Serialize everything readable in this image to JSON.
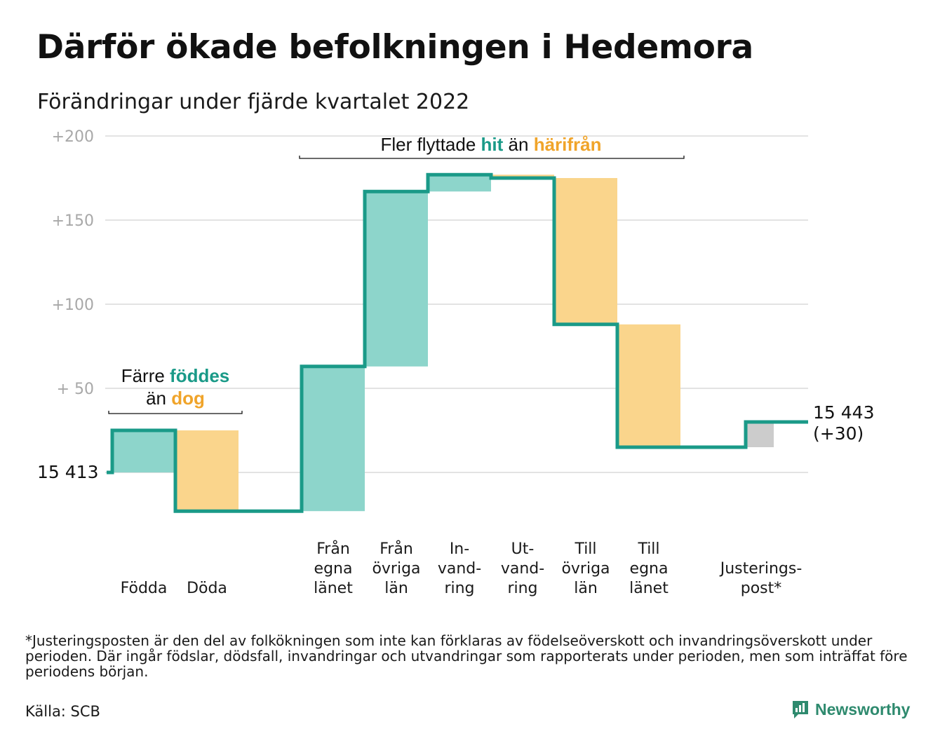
{
  "title": "Därför ökade befolkningen i Hedemora",
  "subtitle": "Förändringar under fjärde kvartalet 2022",
  "colors": {
    "increase": "#8dd5cb",
    "decrease": "#fad58c",
    "adjustment": "#cccccc",
    "line": "#1a9a88",
    "grid": "#e3e3e3",
    "tick": "#a8a8a8",
    "highlight_teal": "#1a9a88",
    "highlight_orange": "#f0a42a",
    "brand": "#2e8a6e"
  },
  "chart_data": {
    "type": "bar",
    "subtype": "waterfall",
    "title": "Därför ökade befolkningen i Hedemora",
    "subtitle": "Förändringar under fjärde kvartalet 2022",
    "xlabel": "",
    "ylabel": "",
    "ylim": [
      -25,
      200
    ],
    "yticks": [
      {
        "value": 200,
        "label": "+200"
      },
      {
        "value": 150,
        "label": "+150"
      },
      {
        "value": 100,
        "label": "+100"
      },
      {
        "value": 50,
        "label": "+ 50"
      },
      {
        "value": 0,
        "label": "15 413"
      }
    ],
    "grid": true,
    "start_value": 15413,
    "end_value": 15443,
    "categories": [
      {
        "lines": [
          "Födda"
        ],
        "change": 25,
        "kind": "increase"
      },
      {
        "lines": [
          "Döda"
        ],
        "change": -48,
        "kind": "decrease"
      },
      {
        "lines": [
          "Från",
          "egna",
          "länet"
        ],
        "change": 86,
        "kind": "increase"
      },
      {
        "lines": [
          "Från",
          "övriga",
          "län"
        ],
        "change": 104,
        "kind": "increase"
      },
      {
        "lines": [
          "In-",
          "vand-",
          "ring"
        ],
        "change": 10,
        "kind": "increase"
      },
      {
        "lines": [
          "Ut-",
          "vand-",
          "ring"
        ],
        "change": -2,
        "kind": "decrease"
      },
      {
        "lines": [
          "Till",
          "övriga",
          "län"
        ],
        "change": -87,
        "kind": "decrease"
      },
      {
        "lines": [
          "Till",
          "egna",
          "länet"
        ],
        "change": -73,
        "kind": "decrease"
      },
      {
        "lines": [
          "Justerings-",
          "post*"
        ],
        "change": 15,
        "kind": "adjustment"
      }
    ],
    "end_label": [
      "15 443",
      "(+30)"
    ],
    "annotations": [
      {
        "segments": [
          {
            "lines": [
              [
                {
                  "t": "Färre ",
                  "c": ""
                },
                {
                  "t": "föddes",
                  "c": "teal"
                }
              ],
              [
                {
                  "t": "än ",
                  "c": ""
                },
                {
                  "t": "dog",
                  "c": "orange"
                }
              ]
            ]
          }
        ],
        "spans": [
          0,
          1
        ]
      },
      {
        "segments": [
          {
            "lines": [
              [
                {
                  "t": "Fler flyttade ",
                  "c": ""
                },
                {
                  "t": "hit",
                  "c": "teal"
                },
                {
                  "t": " än ",
                  "c": ""
                },
                {
                  "t": "härifrån",
                  "c": "orange"
                }
              ]
            ]
          }
        ],
        "spans": [
          2,
          7
        ]
      }
    ]
  },
  "footnote": "*Justeringsposten är den del av folkökningen som inte kan förklaras av födelseöverskott och invandringsöverskott under perioden. Där ingår födslar, dödsfall, invandringar och utvandringar som rapporterats under perioden, men som inträffat före periodens början.",
  "source": "Källa: SCB",
  "brand": {
    "name": "Newsworthy",
    "icon": "newsworthy-logo-icon"
  }
}
